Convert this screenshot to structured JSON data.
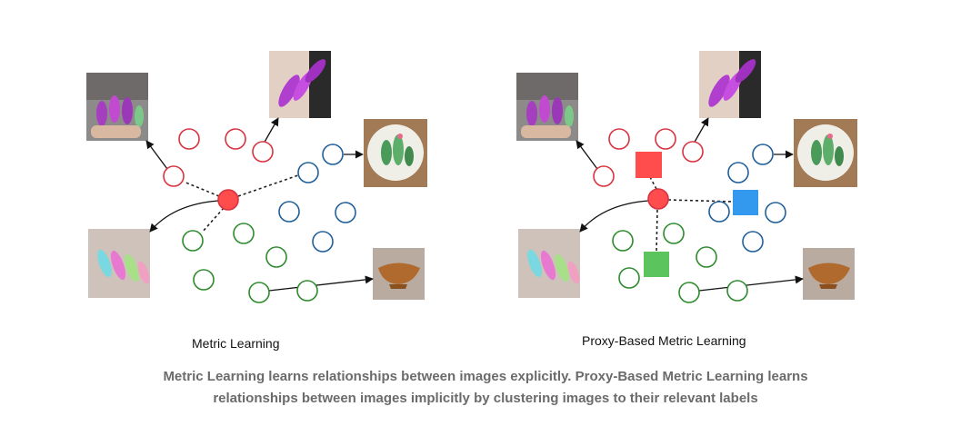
{
  "colors": {
    "red_class": "#d8333f",
    "blue_class": "#1f5f9a",
    "green_class": "#2e8b2e",
    "anchor_fill": "#ff4d4d",
    "proxy_red": "#ff4d4d",
    "proxy_blue": "#3399ee",
    "proxy_green": "#5cc45c",
    "caption": "#6b6b6b"
  },
  "left_diagram": {
    "label": "Metric Learning",
    "images": [
      "nails-purple-photo",
      "nails-purple-closeup-photo",
      "cactus-plate-photo",
      "nails-colorful-photo",
      "wooden-bowl-photo"
    ]
  },
  "right_diagram": {
    "label": "Proxy-Based Metric Learning",
    "images": [
      "nails-purple-photo",
      "nails-purple-closeup-photo",
      "cactus-plate-photo",
      "nails-colorful-photo",
      "wooden-bowl-photo"
    ],
    "proxies": [
      "red-proxy",
      "blue-proxy",
      "green-proxy"
    ]
  },
  "caption": {
    "line1": "Metric Learning learns relationships between images explicitly. Proxy-Based Metric Learning learns",
    "line2": "relationships between images implicitly by clustering images to their relevant labels"
  }
}
